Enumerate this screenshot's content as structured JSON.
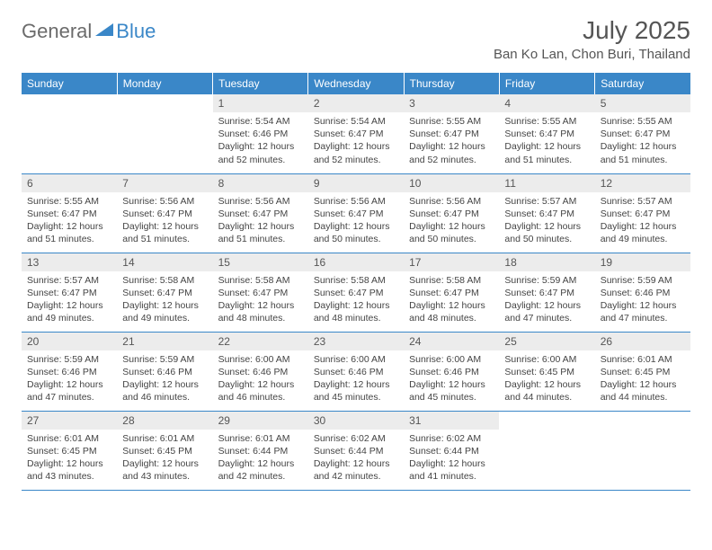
{
  "brand": {
    "part1": "General",
    "part2": "Blue"
  },
  "title": "July 2025",
  "location": "Ban Ko Lan, Chon Buri, Thailand",
  "colors": {
    "header_bg": "#3a87c8",
    "header_text": "#ffffff",
    "daynum_bg": "#ececec",
    "text": "#444444",
    "brand_gray": "#6b6b6b",
    "brand_blue": "#3a87c8"
  },
  "weekdays": [
    "Sunday",
    "Monday",
    "Tuesday",
    "Wednesday",
    "Thursday",
    "Friday",
    "Saturday"
  ],
  "weeks": [
    [
      null,
      null,
      {
        "n": "1",
        "sr": "5:54 AM",
        "ss": "6:46 PM",
        "dl": "12 hours and 52 minutes."
      },
      {
        "n": "2",
        "sr": "5:54 AM",
        "ss": "6:47 PM",
        "dl": "12 hours and 52 minutes."
      },
      {
        "n": "3",
        "sr": "5:55 AM",
        "ss": "6:47 PM",
        "dl": "12 hours and 52 minutes."
      },
      {
        "n": "4",
        "sr": "5:55 AM",
        "ss": "6:47 PM",
        "dl": "12 hours and 51 minutes."
      },
      {
        "n": "5",
        "sr": "5:55 AM",
        "ss": "6:47 PM",
        "dl": "12 hours and 51 minutes."
      }
    ],
    [
      {
        "n": "6",
        "sr": "5:55 AM",
        "ss": "6:47 PM",
        "dl": "12 hours and 51 minutes."
      },
      {
        "n": "7",
        "sr": "5:56 AM",
        "ss": "6:47 PM",
        "dl": "12 hours and 51 minutes."
      },
      {
        "n": "8",
        "sr": "5:56 AM",
        "ss": "6:47 PM",
        "dl": "12 hours and 51 minutes."
      },
      {
        "n": "9",
        "sr": "5:56 AM",
        "ss": "6:47 PM",
        "dl": "12 hours and 50 minutes."
      },
      {
        "n": "10",
        "sr": "5:56 AM",
        "ss": "6:47 PM",
        "dl": "12 hours and 50 minutes."
      },
      {
        "n": "11",
        "sr": "5:57 AM",
        "ss": "6:47 PM",
        "dl": "12 hours and 50 minutes."
      },
      {
        "n": "12",
        "sr": "5:57 AM",
        "ss": "6:47 PM",
        "dl": "12 hours and 49 minutes."
      }
    ],
    [
      {
        "n": "13",
        "sr": "5:57 AM",
        "ss": "6:47 PM",
        "dl": "12 hours and 49 minutes."
      },
      {
        "n": "14",
        "sr": "5:58 AM",
        "ss": "6:47 PM",
        "dl": "12 hours and 49 minutes."
      },
      {
        "n": "15",
        "sr": "5:58 AM",
        "ss": "6:47 PM",
        "dl": "12 hours and 48 minutes."
      },
      {
        "n": "16",
        "sr": "5:58 AM",
        "ss": "6:47 PM",
        "dl": "12 hours and 48 minutes."
      },
      {
        "n": "17",
        "sr": "5:58 AM",
        "ss": "6:47 PM",
        "dl": "12 hours and 48 minutes."
      },
      {
        "n": "18",
        "sr": "5:59 AM",
        "ss": "6:47 PM",
        "dl": "12 hours and 47 minutes."
      },
      {
        "n": "19",
        "sr": "5:59 AM",
        "ss": "6:46 PM",
        "dl": "12 hours and 47 minutes."
      }
    ],
    [
      {
        "n": "20",
        "sr": "5:59 AM",
        "ss": "6:46 PM",
        "dl": "12 hours and 47 minutes."
      },
      {
        "n": "21",
        "sr": "5:59 AM",
        "ss": "6:46 PM",
        "dl": "12 hours and 46 minutes."
      },
      {
        "n": "22",
        "sr": "6:00 AM",
        "ss": "6:46 PM",
        "dl": "12 hours and 46 minutes."
      },
      {
        "n": "23",
        "sr": "6:00 AM",
        "ss": "6:46 PM",
        "dl": "12 hours and 45 minutes."
      },
      {
        "n": "24",
        "sr": "6:00 AM",
        "ss": "6:46 PM",
        "dl": "12 hours and 45 minutes."
      },
      {
        "n": "25",
        "sr": "6:00 AM",
        "ss": "6:45 PM",
        "dl": "12 hours and 44 minutes."
      },
      {
        "n": "26",
        "sr": "6:01 AM",
        "ss": "6:45 PM",
        "dl": "12 hours and 44 minutes."
      }
    ],
    [
      {
        "n": "27",
        "sr": "6:01 AM",
        "ss": "6:45 PM",
        "dl": "12 hours and 43 minutes."
      },
      {
        "n": "28",
        "sr": "6:01 AM",
        "ss": "6:45 PM",
        "dl": "12 hours and 43 minutes."
      },
      {
        "n": "29",
        "sr": "6:01 AM",
        "ss": "6:44 PM",
        "dl": "12 hours and 42 minutes."
      },
      {
        "n": "30",
        "sr": "6:02 AM",
        "ss": "6:44 PM",
        "dl": "12 hours and 42 minutes."
      },
      {
        "n": "31",
        "sr": "6:02 AM",
        "ss": "6:44 PM",
        "dl": "12 hours and 41 minutes."
      },
      null,
      null
    ]
  ],
  "labels": {
    "sunrise": "Sunrise:",
    "sunset": "Sunset:",
    "daylight": "Daylight:"
  }
}
